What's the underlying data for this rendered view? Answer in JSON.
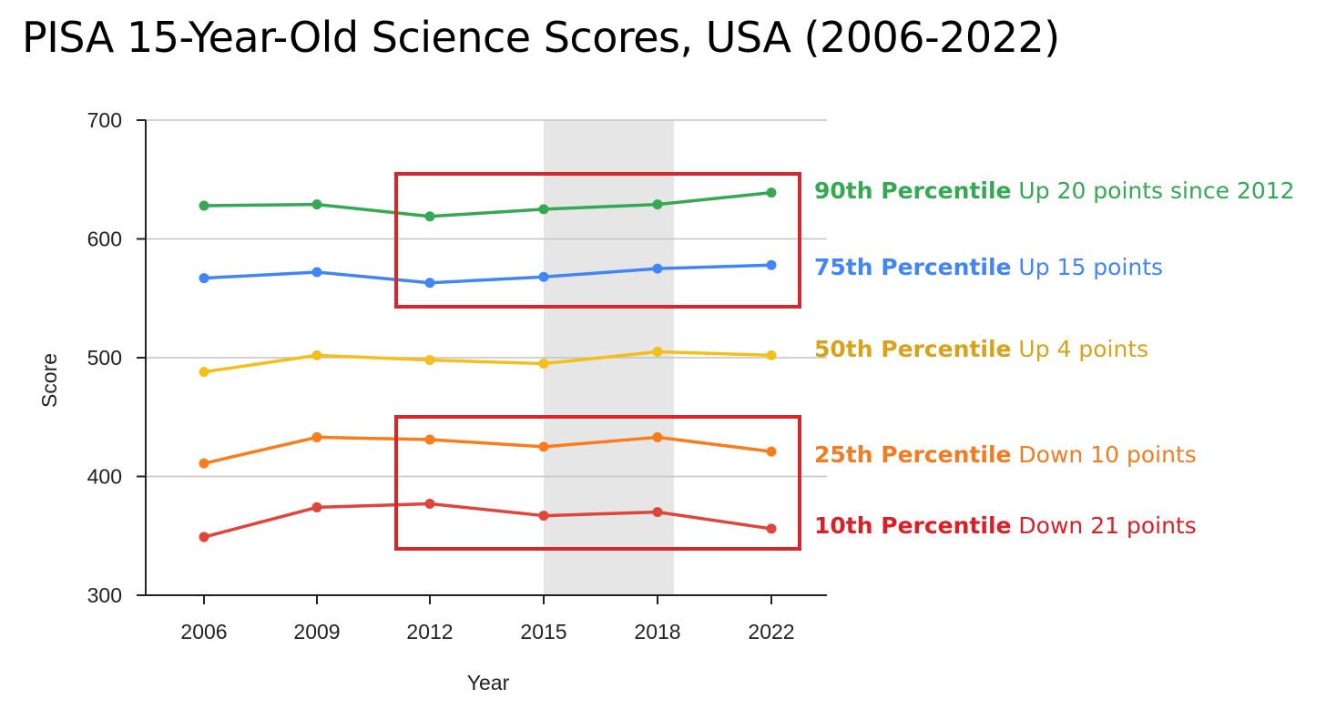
{
  "chart_data": {
    "type": "line",
    "title": "PISA 15-Year-Old Science Scores, USA (2006-2022)",
    "xlabel": "Year",
    "ylabel": "Score",
    "categories": [
      "2006",
      "2009",
      "2012",
      "2015",
      "2018",
      "2022"
    ],
    "ylim": [
      300,
      700
    ],
    "yticks": [
      "300",
      "400",
      "500",
      "600",
      "700"
    ],
    "grid": true,
    "shaded_category": "2015-2018",
    "series": [
      {
        "name": "90th Percentile",
        "note": "Up 20 points since 2012",
        "color": "#34a853",
        "values": [
          628,
          629,
          619,
          625,
          629,
          639
        ]
      },
      {
        "name": "75th Percentile",
        "note": "Up 15 points",
        "color": "#4285f4",
        "values": [
          567,
          572,
          563,
          568,
          575,
          578
        ]
      },
      {
        "name": "50th Percentile",
        "note": "Up 4 points",
        "color": "#f4bf1a",
        "values": [
          488,
          502,
          498,
          495,
          505,
          502
        ]
      },
      {
        "name": "25th Percentile",
        "note": "Down 10 points",
        "color": "#fb7c1a",
        "values": [
          411,
          433,
          431,
          425,
          433,
          421
        ]
      },
      {
        "name": "10th Percentile",
        "note": "Down 21 points",
        "color": "#e0443a",
        "values": [
          349,
          374,
          377,
          367,
          370,
          356
        ]
      }
    ],
    "annotation_colors": [
      "#34a853",
      "#4285f4",
      "#d9a21b",
      "#f07c24",
      "#db1f26"
    ],
    "highlight_box_color": "#d9262b"
  }
}
